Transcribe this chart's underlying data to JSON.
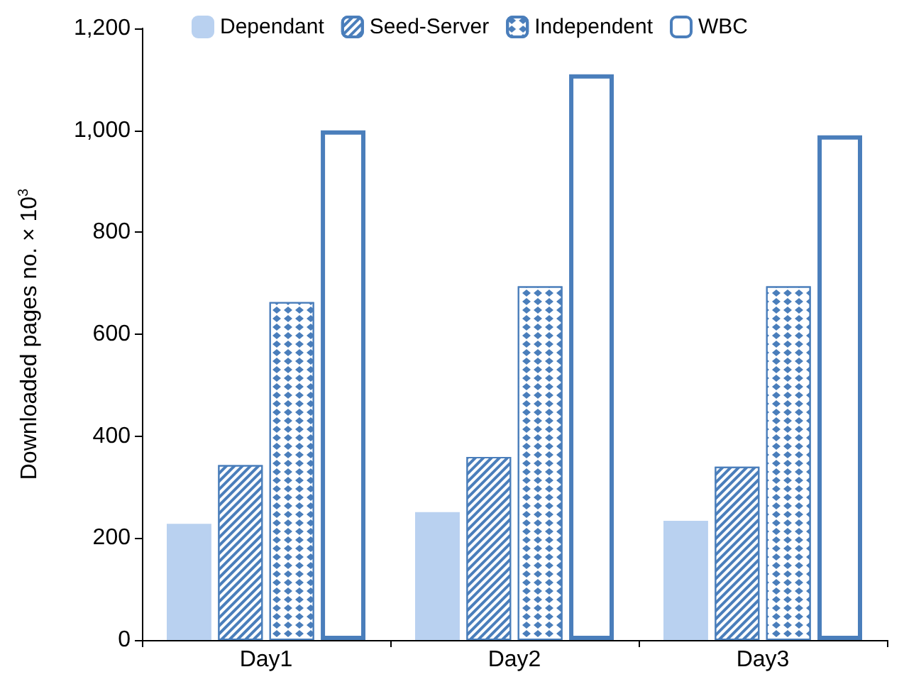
{
  "chart_data": {
    "type": "bar",
    "ylabel": "Downloaded pages no. × 10$^{3}$",
    "categories": [
      "Day1",
      "Day2",
      "Day3"
    ],
    "series": [
      {
        "name": "Dependant",
        "color": "#b9d1f0",
        "values": [
          228,
          251,
          234
        ]
      },
      {
        "name": "Seed-Server",
        "color": "#4a7ebb",
        "values": [
          343,
          359,
          340
        ]
      },
      {
        "name": "Independent",
        "color": "#4a7ebb",
        "values": [
          663,
          694,
          694
        ]
      },
      {
        "name": "WBC",
        "color": "#4a7ebb",
        "values": [
          1000,
          1110,
          990
        ]
      }
    ],
    "ylim": [
      0,
      1200
    ],
    "yticks": [
      0,
      200,
      400,
      600,
      800,
      {
        "value": 1000,
        "label": "1,000"
      },
      {
        "value": 1200,
        "label": "1,200"
      }
    ],
    "grid": false,
    "legend": "top"
  }
}
